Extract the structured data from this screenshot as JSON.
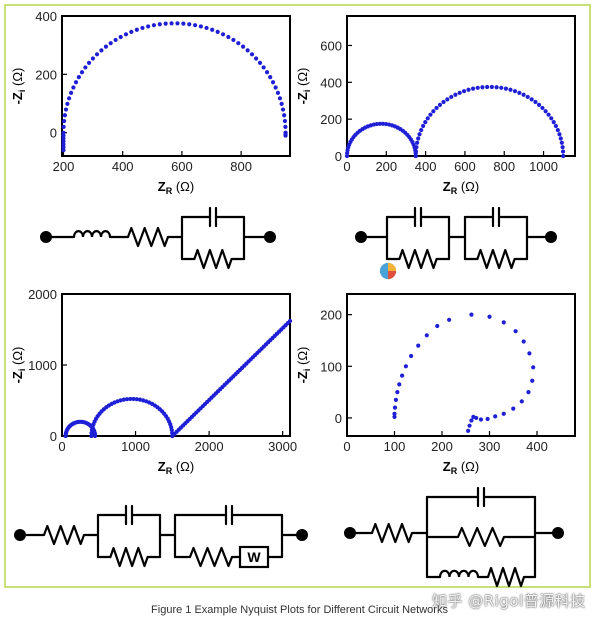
{
  "figure": {
    "caption": "Figure 1 Example Nyquist Plots for Different Circuit Networks",
    "watermark": "知乎 @Rigol普源科技",
    "colors": {
      "points": "#1f1fd6",
      "frame_border": "#c8e07a",
      "axis": "#000000",
      "circuit": "#000000"
    }
  },
  "axis_labels": {
    "x_main": "Z",
    "x_sub": "R",
    "x_unit": " (Ω)",
    "y_main": "-Z",
    "y_sub": "i",
    "y_unit": " (Ω)"
  },
  "chart_data": [
    {
      "type": "scatter",
      "description_series": "single semicircle",
      "xlabel": "ZR (Ω)",
      "ylabel": "-Zi (Ω)",
      "xlim": [
        195,
        965
      ],
      "ylim": [
        -80,
        400
      ],
      "xticks": [
        "200",
        "400",
        "600",
        "800"
      ],
      "xtick_values": [
        200,
        400,
        600,
        800
      ],
      "yticks": [
        "0",
        "200",
        "400"
      ],
      "ytick_values": [
        0,
        200,
        400
      ],
      "semicircles": [
        {
          "center": 575,
          "radius": 375,
          "start_deg": 0,
          "end_deg": 180,
          "points": 60
        }
      ],
      "tails": [
        {
          "x": 200,
          "y0": 0,
          "y1": -60,
          "points": 6
        },
        {
          "x": 950,
          "y0": 0,
          "y1": -10,
          "points": 2
        }
      ],
      "line": null
    },
    {
      "type": "scatter",
      "xlabel": "ZR (Ω)",
      "ylabel": "-Zi (Ω)",
      "xlim": [
        0,
        1160
      ],
      "ylim": [
        0,
        760
      ],
      "xticks": [
        "0",
        "200",
        "400",
        "600",
        "800",
        "1000"
      ],
      "xtick_values": [
        0,
        200,
        400,
        600,
        800,
        1000
      ],
      "yticks": [
        "0",
        "200",
        "400",
        "600"
      ],
      "ytick_values": [
        0,
        200,
        400,
        600
      ],
      "semicircles": [
        {
          "center": 175,
          "radius": 175,
          "start_deg": 0,
          "end_deg": 180,
          "points": 36
        },
        {
          "center": 725,
          "radius": 375,
          "start_deg": 0,
          "end_deg": 180,
          "points": 50
        }
      ],
      "tails": [],
      "line": null
    },
    {
      "type": "scatter",
      "xlabel": "ZR (Ω)",
      "ylabel": "-Zi (Ω)",
      "xlim": [
        0,
        3100
      ],
      "ylim": [
        0,
        2000
      ],
      "xticks": [
        "0",
        "1000",
        "2000",
        "3000"
      ],
      "xtick_values": [
        0,
        1000,
        2000,
        3000
      ],
      "yticks": [
        "0",
        "1000",
        "2000"
      ],
      "ytick_values": [
        0,
        1000,
        2000
      ],
      "semicircles": [
        {
          "center": 250,
          "radius": 200,
          "start_deg": 0,
          "end_deg": 180,
          "points": 30,
          "y_scale": 1.0
        },
        {
          "center": 950,
          "radius": 550,
          "start_deg": 0,
          "end_deg": 180,
          "points": 40,
          "y_scale": 0.95
        }
      ],
      "tails": [],
      "line": {
        "x0": 1500,
        "y0": 0,
        "x1": 3100,
        "y1": 1620,
        "points": 55
      }
    },
    {
      "type": "scatter",
      "xlabel": "ZR (Ω)",
      "ylabel": "-Zi (Ω)",
      "xlim": [
        0,
        480
      ],
      "ylim": [
        -35,
        240
      ],
      "xticks": [
        "0",
        "100",
        "200",
        "300",
        "400"
      ],
      "xtick_values": [
        0,
        100,
        200,
        300,
        400
      ],
      "yticks": [
        "0",
        "100",
        "200"
      ],
      "ytick_values": [
        0,
        100,
        200
      ],
      "spiral": [
        [
          100,
          2
        ],
        [
          100,
          8
        ],
        [
          101,
          20
        ],
        [
          103,
          35
        ],
        [
          106,
          50
        ],
        [
          110,
          65
        ],
        [
          116,
          82
        ],
        [
          124,
          100
        ],
        [
          135,
          120
        ],
        [
          150,
          140
        ],
        [
          168,
          160
        ],
        [
          190,
          178
        ],
        [
          215,
          190
        ],
        [
          262,
          200
        ],
        [
          300,
          196
        ],
        [
          330,
          185
        ],
        [
          355,
          168
        ],
        [
          372,
          148
        ],
        [
          384,
          125
        ],
        [
          392,
          98
        ],
        [
          390,
          72
        ],
        [
          382,
          50
        ],
        [
          368,
          32
        ],
        [
          350,
          18
        ],
        [
          330,
          8
        ],
        [
          312,
          3
        ],
        [
          296,
          -2
        ],
        [
          282,
          -3
        ],
        [
          272,
          0
        ],
        [
          266,
          2
        ],
        [
          262,
          -5
        ],
        [
          258,
          -15
        ],
        [
          255,
          -25
        ]
      ],
      "semicircles": [],
      "tails": [],
      "line": null
    }
  ],
  "circuits": [
    {
      "elements": [
        "inductor",
        "resistor",
        "parallel-RC"
      ]
    },
    {
      "elements": [
        "parallel-RC",
        "parallel-RC"
      ]
    },
    {
      "elements": [
        "resistor",
        "parallel-RC",
        "parallel-RC-Warburg"
      ],
      "warburg_label": "W"
    },
    {
      "elements": [
        "resistor",
        "parallel-C-R-LR"
      ]
    }
  ]
}
